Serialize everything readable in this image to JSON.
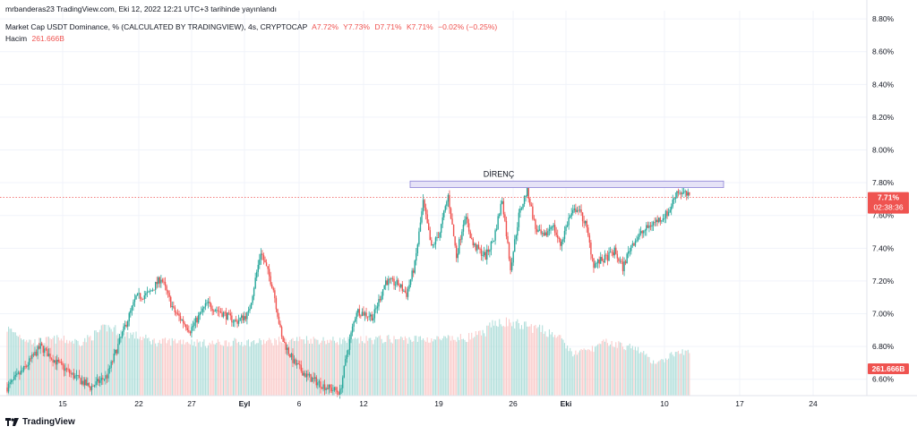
{
  "header": {
    "publisher": "mrbanderas23 TradingView.com, Eki 12, 2022 12:21 UTC+3 tarihinde yayınlandı",
    "symbol": "Market Cap USDT Dominance, % (CALCULATED BY TRADINGVIEW), 4s, CRYPTOCAP",
    "ohlc": {
      "open": "A7.72%",
      "high": "Y7.73%",
      "low": "D7.71%",
      "close": "K7.71%",
      "change": "−0.02% (−0.25%)"
    },
    "volume_label": "Hacim",
    "volume_value": "261.666B"
  },
  "footer": {
    "brand": "TradingView"
  },
  "colors": {
    "up": "#26a69a",
    "down": "#ef5350",
    "up_vol": "#b2dfdb",
    "down_vol": "#facccb",
    "resistance_fill": "#e6e3f7",
    "resistance_stroke": "#8c82d6",
    "grid": "#f0f3fa"
  },
  "chart_data": {
    "type": "candlestick",
    "title": "Market Cap USDT Dominance, %",
    "ylim": [
      6.5,
      8.85
    ],
    "y_ticks": [
      "8.80%",
      "8.60%",
      "8.40%",
      "8.20%",
      "8.00%",
      "7.80%",
      "7.60%",
      "7.40%",
      "7.20%",
      "7.00%",
      "6.80%",
      "6.60%"
    ],
    "y_tick_values": [
      8.8,
      8.6,
      8.4,
      8.2,
      8.0,
      7.8,
      7.6,
      7.4,
      7.2,
      7.0,
      6.8,
      6.6
    ],
    "x_ticks": [
      "15",
      "22",
      "27",
      "Eyl",
      "6",
      "12",
      "19",
      "26",
      "Eki",
      "10",
      "17",
      "24"
    ],
    "last_price_label": "7.71%",
    "countdown_label": "02:38:36",
    "volume_axis_label": "261.666B",
    "annotations": [
      {
        "text": "DİRENÇ",
        "type": "resistance-zone",
        "y_from": 7.77,
        "y_to": 7.81
      }
    ],
    "price_anchors": [
      {
        "t": 0,
        "v": 6.55
      },
      {
        "t": 2,
        "v": 6.66
      },
      {
        "t": 4,
        "v": 6.8
      },
      {
        "t": 6,
        "v": 6.7
      },
      {
        "t": 8,
        "v": 6.62
      },
      {
        "t": 10,
        "v": 6.55
      },
      {
        "t": 12,
        "v": 6.62
      },
      {
        "t": 14,
        "v": 6.9
      },
      {
        "t": 15.5,
        "v": 7.1
      },
      {
        "t": 17,
        "v": 7.12
      },
      {
        "t": 18.5,
        "v": 7.22
      },
      {
        "t": 20,
        "v": 7.02
      },
      {
        "t": 22,
        "v": 6.9
      },
      {
        "t": 24,
        "v": 7.06
      },
      {
        "t": 26,
        "v": 7.0
      },
      {
        "t": 27.5,
        "v": 6.95
      },
      {
        "t": 29,
        "v": 7.0
      },
      {
        "t": 30.5,
        "v": 7.38
      },
      {
        "t": 32,
        "v": 7.15
      },
      {
        "t": 33,
        "v": 6.85
      },
      {
        "t": 34.5,
        "v": 6.7
      },
      {
        "t": 36,
        "v": 6.62
      },
      {
        "t": 38,
        "v": 6.56
      },
      {
        "t": 40,
        "v": 6.52
      },
      {
        "t": 41,
        "v": 6.8
      },
      {
        "t": 42,
        "v": 7.02
      },
      {
        "t": 44,
        "v": 6.98
      },
      {
        "t": 45.5,
        "v": 7.2
      },
      {
        "t": 47,
        "v": 7.18
      },
      {
        "t": 48,
        "v": 7.12
      },
      {
        "t": 49,
        "v": 7.3
      },
      {
        "t": 50,
        "v": 7.68
      },
      {
        "t": 51,
        "v": 7.4
      },
      {
        "t": 52,
        "v": 7.5
      },
      {
        "t": 53,
        "v": 7.72
      },
      {
        "t": 54,
        "v": 7.35
      },
      {
        "t": 55,
        "v": 7.6
      },
      {
        "t": 56,
        "v": 7.42
      },
      {
        "t": 57.5,
        "v": 7.35
      },
      {
        "t": 58.5,
        "v": 7.46
      },
      {
        "t": 59.5,
        "v": 7.7
      },
      {
        "t": 60.5,
        "v": 7.28
      },
      {
        "t": 61.5,
        "v": 7.6
      },
      {
        "t": 62.5,
        "v": 7.76
      },
      {
        "t": 63.5,
        "v": 7.52
      },
      {
        "t": 64.5,
        "v": 7.46
      },
      {
        "t": 65.5,
        "v": 7.55
      },
      {
        "t": 66.5,
        "v": 7.42
      },
      {
        "t": 67.5,
        "v": 7.58
      },
      {
        "t": 68.5,
        "v": 7.65
      },
      {
        "t": 69.5,
        "v": 7.55
      },
      {
        "t": 70.5,
        "v": 7.3
      },
      {
        "t": 72,
        "v": 7.34
      },
      {
        "t": 73,
        "v": 7.38
      },
      {
        "t": 74,
        "v": 7.28
      },
      {
        "t": 75,
        "v": 7.42
      },
      {
        "t": 76,
        "v": 7.48
      },
      {
        "t": 77.5,
        "v": 7.55
      },
      {
        "t": 78.5,
        "v": 7.58
      },
      {
        "t": 79.5,
        "v": 7.62
      },
      {
        "t": 80.5,
        "v": 7.75
      },
      {
        "t": 81.5,
        "v": 7.73
      },
      {
        "t": 82,
        "v": 7.71
      }
    ],
    "volume_anchors": [
      {
        "t": 0,
        "v": 0.88
      },
      {
        "t": 3,
        "v": 0.7
      },
      {
        "t": 6,
        "v": 0.74
      },
      {
        "t": 9,
        "v": 0.7
      },
      {
        "t": 12,
        "v": 0.9
      },
      {
        "t": 15,
        "v": 0.8
      },
      {
        "t": 18,
        "v": 0.7
      },
      {
        "t": 21,
        "v": 0.72
      },
      {
        "t": 24,
        "v": 0.68
      },
      {
        "t": 27,
        "v": 0.7
      },
      {
        "t": 30,
        "v": 0.7
      },
      {
        "t": 33,
        "v": 0.72
      },
      {
        "t": 36,
        "v": 0.74
      },
      {
        "t": 39,
        "v": 0.72
      },
      {
        "t": 42,
        "v": 0.72
      },
      {
        "t": 45,
        "v": 0.74
      },
      {
        "t": 48,
        "v": 0.74
      },
      {
        "t": 51,
        "v": 0.74
      },
      {
        "t": 54,
        "v": 0.74
      },
      {
        "t": 57,
        "v": 0.8
      },
      {
        "t": 59,
        "v": 0.98
      },
      {
        "t": 61,
        "v": 0.94
      },
      {
        "t": 63,
        "v": 0.9
      },
      {
        "t": 66,
        "v": 0.8
      },
      {
        "t": 68,
        "v": 0.55
      },
      {
        "t": 70,
        "v": 0.6
      },
      {
        "t": 72,
        "v": 0.7
      },
      {
        "t": 74,
        "v": 0.66
      },
      {
        "t": 76,
        "v": 0.6
      },
      {
        "t": 78,
        "v": 0.4
      },
      {
        "t": 80,
        "v": 0.55
      },
      {
        "t": 82,
        "v": 0.58
      }
    ]
  }
}
